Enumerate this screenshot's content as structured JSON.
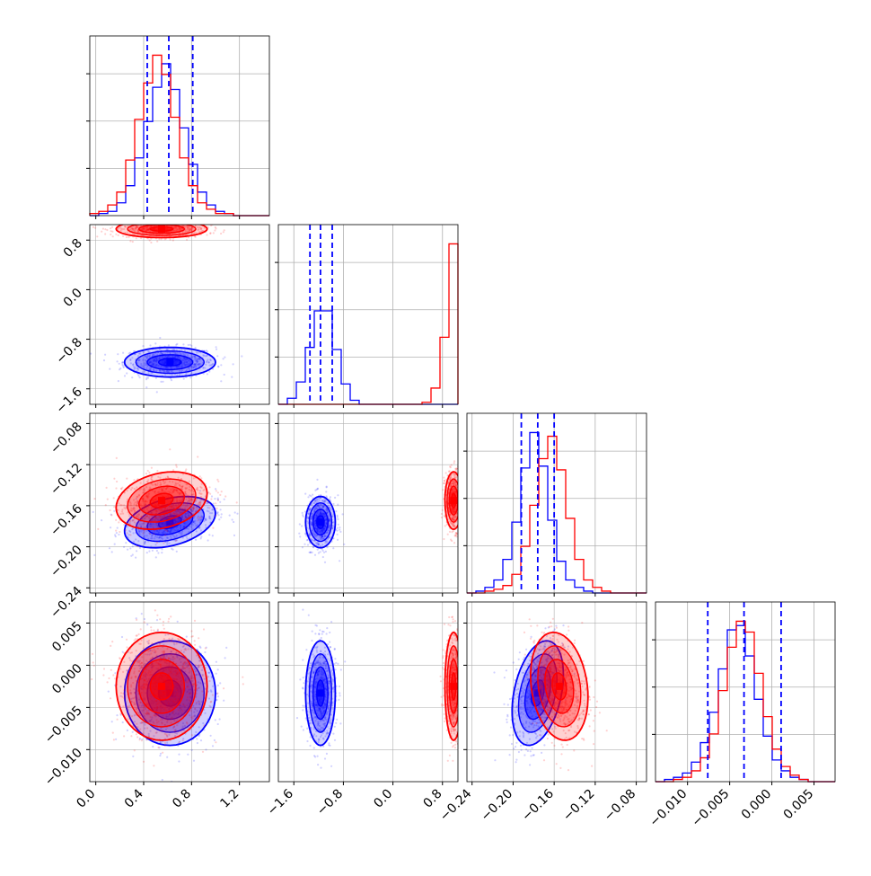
{
  "chart_data": {
    "type": "corner",
    "colors": {
      "series_a": "#0000ff",
      "series_b": "#ff0000",
      "grid": "#b0b0b0",
      "frame": "#000000"
    },
    "grid": true,
    "parameters": [
      {
        "id": "p1",
        "range": [
          -0.05,
          1.45
        ],
        "ticks": [
          "0.0",
          "0.4",
          "0.8",
          "1.2"
        ],
        "tick_values": [
          0.0,
          0.4,
          0.8,
          1.2
        ]
      },
      {
        "id": "p2",
        "range": [
          -1.85,
          1.05
        ],
        "ticks": [
          "−1.6",
          "−0.8",
          "0.0",
          "0.8"
        ],
        "tick_values": [
          -1.6,
          -0.8,
          0.0,
          0.8
        ]
      },
      {
        "id": "p3",
        "range": [
          -0.245,
          -0.07
        ],
        "ticks": [
          "−0.24",
          "−0.20",
          "−0.16",
          "−0.12",
          "−0.08"
        ],
        "tick_values": [
          -0.24,
          -0.2,
          -0.16,
          -0.12,
          -0.08
        ]
      },
      {
        "id": "p4",
        "range": [
          -0.0138,
          0.0075
        ],
        "ticks": [
          "−0.010",
          "−0.005",
          "0.000",
          "0.005"
        ],
        "tick_values": [
          -0.01,
          -0.005,
          0.0,
          0.005
        ]
      }
    ],
    "quantile_lines": [
      [
        0.43,
        0.61,
        0.81
      ],
      [
        -1.34,
        -1.17,
        -0.98
      ],
      [
        -0.192,
        -0.176,
        -0.16
      ],
      [
        -0.0076,
        -0.0033,
        0.0011
      ]
    ],
    "series": [
      {
        "name": "",
        "color": "#0000ff",
        "mean": [
          0.62,
          -1.17,
          -0.176,
          -0.0033
        ],
        "std": [
          0.19,
          0.12,
          0.0125,
          0.0031
        ],
        "corr": {
          "0-2": 0.35,
          "2-3": 0.35
        }
      },
      {
        "name": "",
        "color": "#ff0000",
        "mean": [
          0.55,
          0.98,
          -0.155,
          -0.0025
        ],
        "std": [
          0.19,
          0.07,
          0.014,
          0.0032
        ],
        "corr": {
          "0-2": 0.25,
          "2-3": -0.2
        }
      }
    ],
    "hist1d": [
      {
        "bins": [
          -0.05,
          1.45
        ],
        "series_a": [
          0,
          1,
          2,
          6,
          14,
          27,
          44,
          60,
          71,
          59,
          41,
          24,
          11,
          5,
          2,
          1,
          0,
          0,
          0,
          0
        ],
        "series_b": [
          1,
          2,
          5,
          11,
          26,
          45,
          62,
          75,
          66,
          46,
          27,
          14,
          6,
          3,
          1,
          1,
          0,
          0,
          0,
          0
        ]
      },
      {
        "bins": [
          -1.85,
          1.05
        ],
        "series_a": [
          0,
          3,
          11,
          28,
          46,
          46,
          27,
          10,
          2,
          0,
          0,
          0,
          0,
          0,
          0,
          0,
          0,
          0,
          0,
          0
        ],
        "series_b": [
          0,
          0,
          0,
          0,
          0,
          0,
          0,
          0,
          0,
          0,
          0,
          0,
          0,
          0,
          0,
          0,
          1,
          8,
          33,
          79
        ]
      },
      {
        "bins": [
          -0.245,
          -0.07
        ],
        "series_a": [
          0,
          1,
          3,
          7,
          18,
          38,
          67,
          86,
          68,
          39,
          17,
          7,
          3,
          1,
          0,
          0,
          0,
          0,
          0,
          0
        ],
        "series_b": [
          0,
          0,
          1,
          2,
          4,
          10,
          25,
          47,
          72,
          84,
          66,
          40,
          18,
          7,
          3,
          1,
          0,
          0,
          0,
          0
        ],
        "bins_start": -0.245
      },
      {
        "bins": [
          -0.0138,
          0.0075
        ],
        "series_a": [
          0,
          1,
          2,
          4,
          9,
          18,
          32,
          52,
          70,
          72,
          58,
          38,
          21,
          10,
          5,
          2,
          1,
          0,
          0,
          0
        ],
        "series_b": [
          0,
          0,
          1,
          2,
          5,
          11,
          22,
          42,
          62,
          74,
          69,
          50,
          30,
          15,
          7,
          3,
          1,
          0,
          0,
          0
        ]
      }
    ]
  }
}
